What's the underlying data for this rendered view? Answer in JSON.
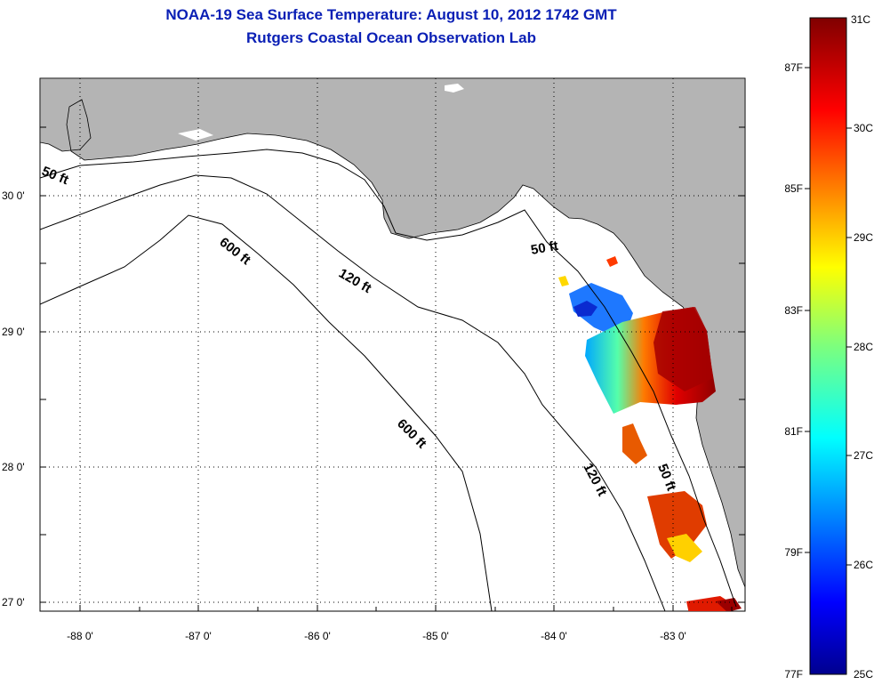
{
  "title": {
    "line1": "NOAA-19 Sea Surface Temperature:  August 10, 2012 1742 GMT",
    "line2": "Rutgers Coastal Ocean Observation Lab"
  },
  "map": {
    "lat_labels": [
      "30 0'",
      "29 0'",
      "28 0'",
      "27 0'"
    ],
    "lon_labels": [
      "-88 0'",
      "-87 0'",
      "-86 0'",
      "-85 0'",
      "-84 0'",
      "-83 0'"
    ],
    "contours": [
      "50 ft",
      "600 ft",
      "120 ft",
      "50 ft",
      "600 ft",
      "120 ft",
      "50 ft"
    ],
    "colors": {
      "land": "#b4b4b4",
      "water": "#ffffff"
    }
  },
  "colorbar": {
    "celsius": [
      "31C",
      "30C",
      "29C",
      "28C",
      "27C",
      "26C",
      "25C"
    ],
    "fahrenheit": [
      "87F",
      "85F",
      "83F",
      "81F",
      "79F",
      "77F"
    ]
  }
}
